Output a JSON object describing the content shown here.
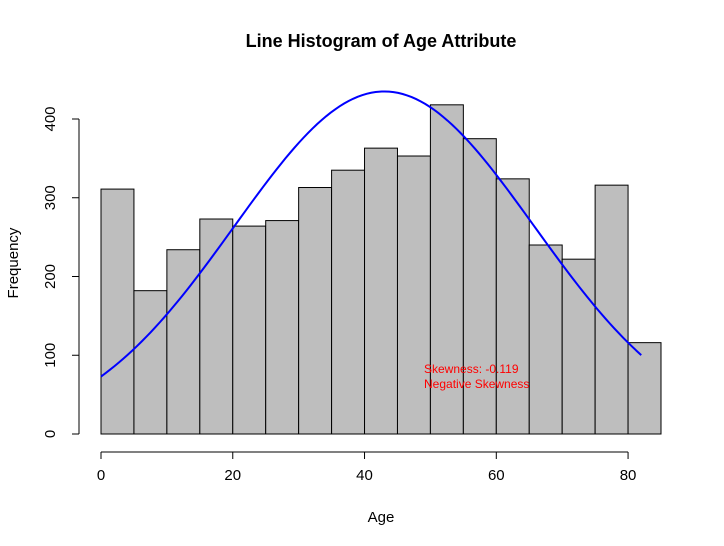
{
  "chart_data": {
    "type": "bar",
    "title": "Line Histogram of Age Attribute",
    "xlabel": "Age",
    "ylabel": "Frequency",
    "bin_width": 5,
    "bins_start": [
      0,
      5,
      10,
      15,
      20,
      25,
      30,
      35,
      40,
      45,
      50,
      55,
      60,
      65,
      70,
      75,
      80
    ],
    "values": [
      311,
      182,
      234,
      273,
      264,
      271,
      313,
      335,
      363,
      353,
      418,
      375,
      324,
      240,
      222,
      316,
      116
    ],
    "xlim": [
      0,
      85
    ],
    "ylim": [
      0,
      420
    ],
    "x_ticks": [
      0,
      20,
      40,
      60,
      80
    ],
    "y_ticks": [
      0,
      100,
      200,
      300,
      400
    ],
    "bar_color": "#bebebe",
    "curve": {
      "type": "normal-density-curve",
      "color": "#0000ff",
      "x_range": [
        0,
        82
      ],
      "peak_x": 43,
      "peak_y": 435,
      "start_y": 73,
      "end_y": 96
    },
    "annotations": {
      "skewness_text": "Skewness: -0.119",
      "skewness_type": "Negative Skewness",
      "color": "#ff0000"
    },
    "grid": false,
    "legend": "none"
  }
}
